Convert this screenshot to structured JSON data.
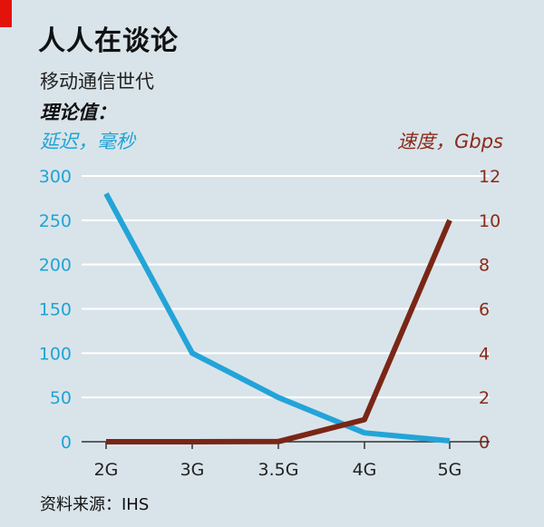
{
  "title": "人人在谈论",
  "subtitle": "移动通信世代",
  "note": "理论值：",
  "source": "资料来源：IHS",
  "colors": {
    "latency": "#23a4d8",
    "speed": "#7a2616",
    "background": "#d9e4ea",
    "accent": "#e3120b"
  },
  "chart_data": {
    "type": "line",
    "categories": [
      "2G",
      "3G",
      "3.5G",
      "4G",
      "5G"
    ],
    "series": [
      {
        "name": "延迟，毫秒",
        "axis": "left",
        "values": [
          280,
          100,
          50,
          10,
          1
        ]
      },
      {
        "name": "速度，Gbps",
        "axis": "right",
        "values": [
          0,
          0,
          0.01,
          1,
          10
        ]
      }
    ],
    "ylabel_left": "延迟，毫秒",
    "ylabel_right": "速度，Gbps",
    "ylim_left": [
      0,
      300
    ],
    "ylim_right": [
      0,
      12
    ],
    "yticks_left": [
      "0",
      "50",
      "100",
      "150",
      "200",
      "250",
      "300"
    ],
    "yticks_right": [
      "0",
      "2",
      "4",
      "6",
      "8",
      "10",
      "12"
    ],
    "grid": true
  }
}
